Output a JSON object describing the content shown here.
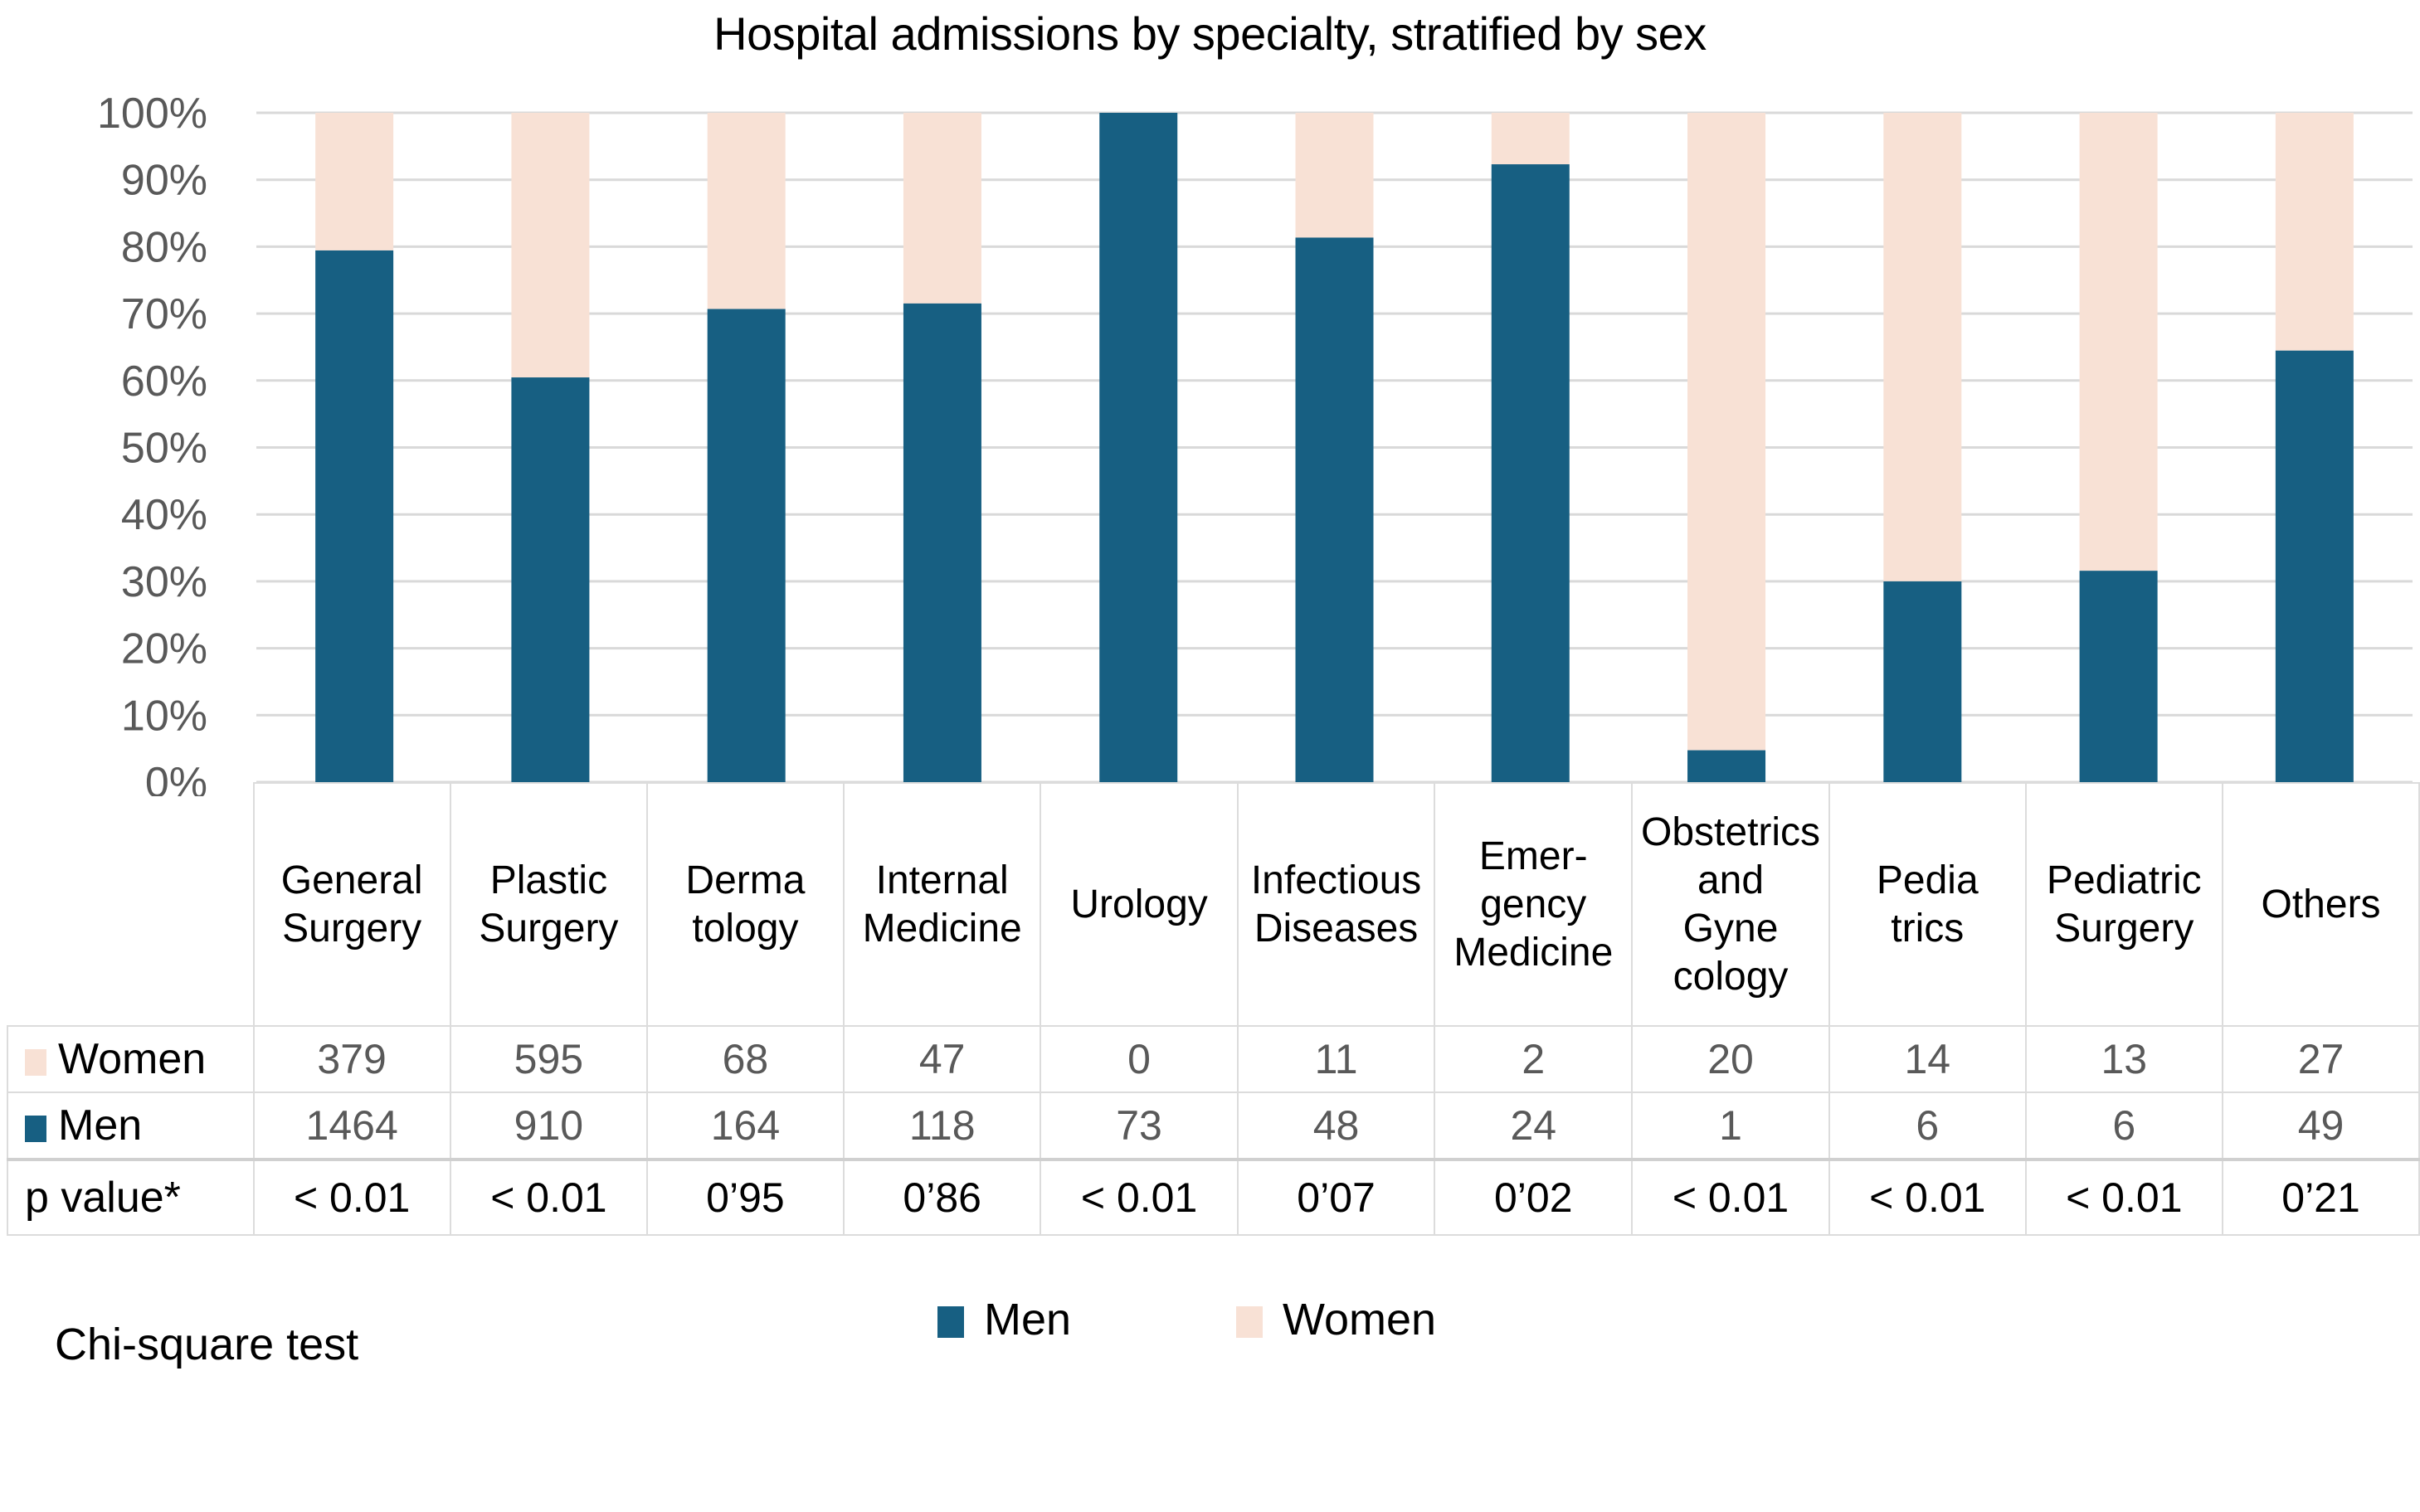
{
  "chart_data": {
    "type": "bar",
    "stacked": "percent",
    "title": "Hospital admissions by specialty, stratified by sex",
    "xlabel": "",
    "ylabel": "",
    "ylim": [
      0,
      100
    ],
    "yticks": [
      "0%",
      "10%",
      "20%",
      "30%",
      "40%",
      "50%",
      "60%",
      "70%",
      "80%",
      "90%",
      "100%"
    ],
    "grid": true,
    "legend_position": "bottom",
    "categories": [
      "General Surgery",
      "Plastic Surgery",
      "Dermatology",
      "Internal Medicine",
      "Urology",
      "Infectious Diseases",
      "Emergency Medicine",
      "Obstetrics and Gynecology",
      "Pediatrics",
      "Pediatric Surgery",
      "Others"
    ],
    "category_label_lines": [
      [
        "General",
        "Surgery"
      ],
      [
        "Plastic",
        "Surgery"
      ],
      [
        "Derma",
        "tology"
      ],
      [
        "Internal",
        "Medicine"
      ],
      [
        "Urology"
      ],
      [
        "Infectious",
        "Diseases"
      ],
      [
        "Emer-",
        "gency",
        "Medicine"
      ],
      [
        "Obstetrics",
        "and",
        "Gyne",
        "cology"
      ],
      [
        "Pedia",
        "trics"
      ],
      [
        "Pediatric",
        "Surgery"
      ],
      [
        "Others"
      ]
    ],
    "series": [
      {
        "name": "Men",
        "color": "#175f82",
        "values": [
          1464,
          910,
          164,
          118,
          73,
          48,
          24,
          1,
          6,
          6,
          49
        ]
      },
      {
        "name": "Women",
        "color": "#f8e1d5",
        "values": [
          379,
          595,
          68,
          47,
          0,
          11,
          2,
          20,
          14,
          13,
          27
        ]
      }
    ],
    "p_values": [
      "< 0.01",
      "< 0.01",
      "0’95",
      "0’86",
      "< 0.01",
      "0’07",
      "0’02",
      "< 0.01",
      "< 0.01",
      "< 0.01",
      "0’21"
    ]
  },
  "table": {
    "row_labels": {
      "women": "Women",
      "men": "Men",
      "p": "p value*"
    }
  },
  "legend": {
    "men": "Men",
    "women": "Women"
  },
  "footnote": "Chi-square test",
  "colors": {
    "men": "#175f82",
    "women": "#f8e1d5",
    "grid": "#d9d9d9",
    "axis_text": "#595959"
  }
}
